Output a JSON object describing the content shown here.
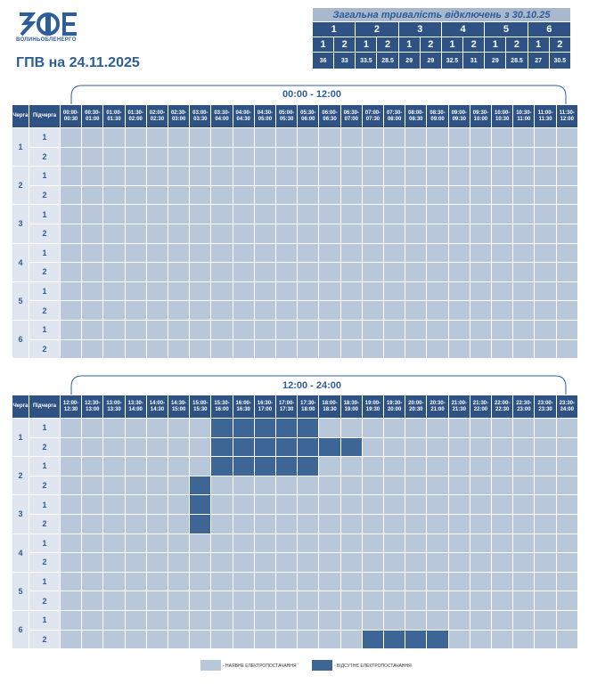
{
  "logo_text": "ВОЛИНЬОБЛЕНЕРГО",
  "title": "ГПВ на 24.11.2025",
  "summary": {
    "title": "Загальна тривалість відключень з 30.10.25",
    "queues": [
      "1",
      "2",
      "3",
      "4",
      "5",
      "6"
    ],
    "subs": [
      [
        "1",
        "2"
      ],
      [
        "1",
        "2"
      ],
      [
        "1",
        "2"
      ],
      [
        "1",
        "2"
      ],
      [
        "1",
        "2"
      ],
      [
        "1",
        "2"
      ]
    ],
    "hours": [
      36,
      33,
      33.5,
      28.5,
      29,
      29,
      32.5,
      31,
      29,
      28.5,
      27,
      30.5
    ]
  },
  "queues": [
    "1",
    "2",
    "3",
    "4",
    "5",
    "6"
  ],
  "subqueues": [
    "1",
    "2"
  ],
  "schedules": [
    {
      "title": "00:00 - 12:00",
      "header_queue": "Черга",
      "header_sub": "Підчерга",
      "slots": [
        "00:00-00:30",
        "00:30-01:00",
        "01:00-01:30",
        "01:30-02:00",
        "02:00-02:30",
        "02:30-03:00",
        "03:00-03:30",
        "03:30-04:00",
        "04:00-04:30",
        "04:30-05:00",
        "05:00-05:30",
        "05:30-06:00",
        "06:00-06:30",
        "06:30-07:00",
        "07:00-07:30",
        "07:30-08:00",
        "08:00-08:30",
        "08:30-09:00",
        "09:00-09:30",
        "09:30-10:00",
        "10:00-10:30",
        "10:30-11:00",
        "11:00-11:30",
        "11:30-12:00"
      ],
      "outage": [
        [
          0,
          0,
          0,
          0,
          0,
          0,
          0,
          0,
          0,
          0,
          0,
          0,
          0,
          0,
          0,
          0,
          0,
          0,
          0,
          0,
          0,
          0,
          0,
          0
        ],
        [
          0,
          0,
          0,
          0,
          0,
          0,
          0,
          0,
          0,
          0,
          0,
          0,
          0,
          0,
          0,
          0,
          0,
          0,
          0,
          0,
          0,
          0,
          0,
          0
        ],
        [
          0,
          0,
          0,
          0,
          0,
          0,
          0,
          0,
          0,
          0,
          0,
          0,
          0,
          0,
          0,
          0,
          0,
          0,
          0,
          0,
          0,
          0,
          0,
          0
        ],
        [
          0,
          0,
          0,
          0,
          0,
          0,
          0,
          0,
          0,
          0,
          0,
          0,
          0,
          0,
          0,
          0,
          0,
          0,
          0,
          0,
          0,
          0,
          0,
          0
        ],
        [
          0,
          0,
          0,
          0,
          0,
          0,
          0,
          0,
          0,
          0,
          0,
          0,
          0,
          0,
          0,
          0,
          0,
          0,
          0,
          0,
          0,
          0,
          0,
          0
        ],
        [
          0,
          0,
          0,
          0,
          0,
          0,
          0,
          0,
          0,
          0,
          0,
          0,
          0,
          0,
          0,
          0,
          0,
          0,
          0,
          0,
          0,
          0,
          0,
          0
        ],
        [
          0,
          0,
          0,
          0,
          0,
          0,
          0,
          0,
          0,
          0,
          0,
          0,
          0,
          0,
          0,
          0,
          0,
          0,
          0,
          0,
          0,
          0,
          0,
          0
        ],
        [
          0,
          0,
          0,
          0,
          0,
          0,
          0,
          0,
          0,
          0,
          0,
          0,
          0,
          0,
          0,
          0,
          0,
          0,
          0,
          0,
          0,
          0,
          0,
          0
        ],
        [
          0,
          0,
          0,
          0,
          0,
          0,
          0,
          0,
          0,
          0,
          0,
          0,
          0,
          0,
          0,
          0,
          0,
          0,
          0,
          0,
          0,
          0,
          0,
          0
        ],
        [
          0,
          0,
          0,
          0,
          0,
          0,
          0,
          0,
          0,
          0,
          0,
          0,
          0,
          0,
          0,
          0,
          0,
          0,
          0,
          0,
          0,
          0,
          0,
          0
        ],
        [
          0,
          0,
          0,
          0,
          0,
          0,
          0,
          0,
          0,
          0,
          0,
          0,
          0,
          0,
          0,
          0,
          0,
          0,
          0,
          0,
          0,
          0,
          0,
          0
        ],
        [
          0,
          0,
          0,
          0,
          0,
          0,
          0,
          0,
          0,
          0,
          0,
          0,
          0,
          0,
          0,
          0,
          0,
          0,
          0,
          0,
          0,
          0,
          0,
          0
        ]
      ]
    },
    {
      "title": "12:00 - 24:00",
      "header_queue": "Черга",
      "header_sub": "Підчерга",
      "slots": [
        "12:00-12:30",
        "12:30-13:00",
        "13:00-13:30",
        "13:30-14:00",
        "14:00-14:30",
        "14:30-15:00",
        "15:00-15:30",
        "15:30-16:00",
        "16:00-16:30",
        "16:30-17:00",
        "17:00-17:30",
        "17:30-18:00",
        "18:00-18:30",
        "18:30-19:00",
        "19:00-19:30",
        "19:30-20:00",
        "20:00-20:30",
        "20:30-21:00",
        "21:00-21:30",
        "21:30-22:00",
        "22:00-22:30",
        "22:30-23:00",
        "23:00-23:30",
        "23:30-24:00"
      ],
      "outage": [
        [
          0,
          0,
          0,
          0,
          0,
          0,
          0,
          1,
          1,
          1,
          1,
          1,
          0,
          0,
          0,
          0,
          0,
          0,
          0,
          0,
          0,
          0,
          0,
          0
        ],
        [
          0,
          0,
          0,
          0,
          0,
          0,
          0,
          1,
          1,
          1,
          1,
          1,
          1,
          1,
          0,
          0,
          0,
          0,
          0,
          0,
          0,
          0,
          0,
          0
        ],
        [
          0,
          0,
          0,
          0,
          0,
          0,
          0,
          1,
          1,
          1,
          1,
          1,
          0,
          0,
          0,
          0,
          0,
          0,
          0,
          0,
          0,
          0,
          0,
          0
        ],
        [
          0,
          0,
          0,
          0,
          0,
          0,
          1,
          0,
          0,
          0,
          0,
          0,
          0,
          0,
          0,
          0,
          0,
          0,
          0,
          0,
          0,
          0,
          0,
          0
        ],
        [
          0,
          0,
          0,
          0,
          0,
          0,
          1,
          0,
          0,
          0,
          0,
          0,
          0,
          0,
          0,
          0,
          0,
          0,
          0,
          0,
          0,
          0,
          0,
          0
        ],
        [
          0,
          0,
          0,
          0,
          0,
          0,
          1,
          0,
          0,
          0,
          0,
          0,
          0,
          0,
          0,
          0,
          0,
          0,
          0,
          0,
          0,
          0,
          0,
          0
        ],
        [
          0,
          0,
          0,
          0,
          0,
          0,
          0,
          0,
          0,
          0,
          0,
          0,
          0,
          0,
          0,
          0,
          0,
          0,
          0,
          0,
          0,
          0,
          0,
          0
        ],
        [
          0,
          0,
          0,
          0,
          0,
          0,
          0,
          0,
          0,
          0,
          0,
          0,
          0,
          0,
          0,
          0,
          0,
          0,
          0,
          0,
          0,
          0,
          0,
          0
        ],
        [
          0,
          0,
          0,
          0,
          0,
          0,
          0,
          0,
          0,
          0,
          0,
          0,
          0,
          0,
          0,
          0,
          0,
          0,
          0,
          0,
          0,
          0,
          0,
          0
        ],
        [
          0,
          0,
          0,
          0,
          0,
          0,
          0,
          0,
          0,
          0,
          0,
          0,
          0,
          0,
          0,
          0,
          0,
          0,
          0,
          0,
          0,
          0,
          0,
          0
        ],
        [
          0,
          0,
          0,
          0,
          0,
          0,
          0,
          0,
          0,
          0,
          0,
          0,
          0,
          0,
          0,
          0,
          0,
          0,
          0,
          0,
          0,
          0,
          0,
          0
        ],
        [
          0,
          0,
          0,
          0,
          0,
          0,
          0,
          0,
          0,
          0,
          0,
          0,
          0,
          0,
          1,
          1,
          1,
          1,
          0,
          0,
          0,
          0,
          0,
          0
        ]
      ]
    }
  ],
  "legend": {
    "on": "- НАЯВНЕ ЕЛЕКТРОПОСТАЧАННЯ",
    "off": "- ВІДСУТНЄ ЕЛЕКТРОПОСТАЧАННЯ"
  }
}
